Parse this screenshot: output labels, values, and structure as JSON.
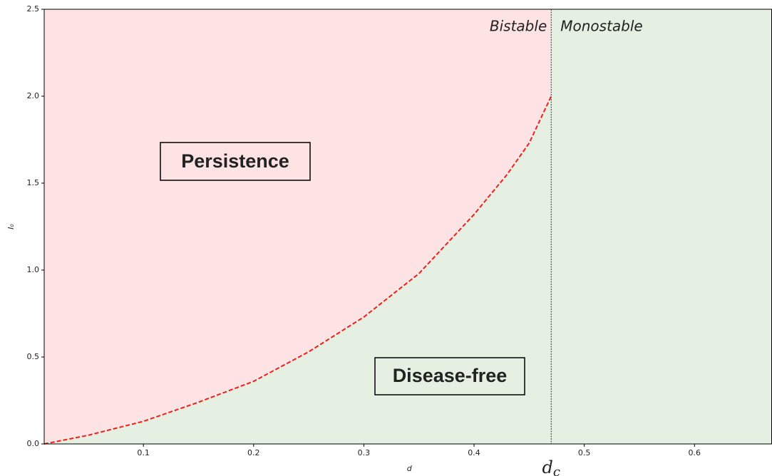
{
  "chart_data": {
    "type": "region",
    "x_label": "d",
    "y_label": "I₀",
    "xlim": [
      0.01,
      0.67
    ],
    "ylim": [
      0,
      2.5
    ],
    "xticks": [
      0.1,
      0.2,
      0.3,
      0.4,
      0.5,
      0.6
    ],
    "yticks": [
      {
        "value": 0,
        "label": "0.0"
      },
      0.5,
      {
        "value": 1,
        "label": "1.0"
      },
      1.5,
      {
        "value": 2,
        "label": "2.0"
      },
      2.5
    ],
    "threshold": {
      "value": 0.47,
      "label": "d",
      "subscript": "c",
      "color": "#333333"
    },
    "boundary": {
      "color": "#e8231e",
      "x": [
        0.01,
        0.05,
        0.1,
        0.15,
        0.2,
        0.25,
        0.3,
        0.35,
        0.4,
        0.43,
        0.45,
        0.47
      ],
      "values": [
        0,
        0.05,
        0.13,
        0.24,
        0.36,
        0.53,
        0.73,
        0.98,
        1.32,
        1.55,
        1.73,
        2.0
      ]
    },
    "regions": {
      "persistence_color": "#fde3e4",
      "disease_free_color": "#e5f0e3"
    },
    "annotations": {
      "bistable": "Bistable",
      "monostable": "Monostable",
      "persistence": "Persistence",
      "disease_free": "Disease-free"
    }
  }
}
